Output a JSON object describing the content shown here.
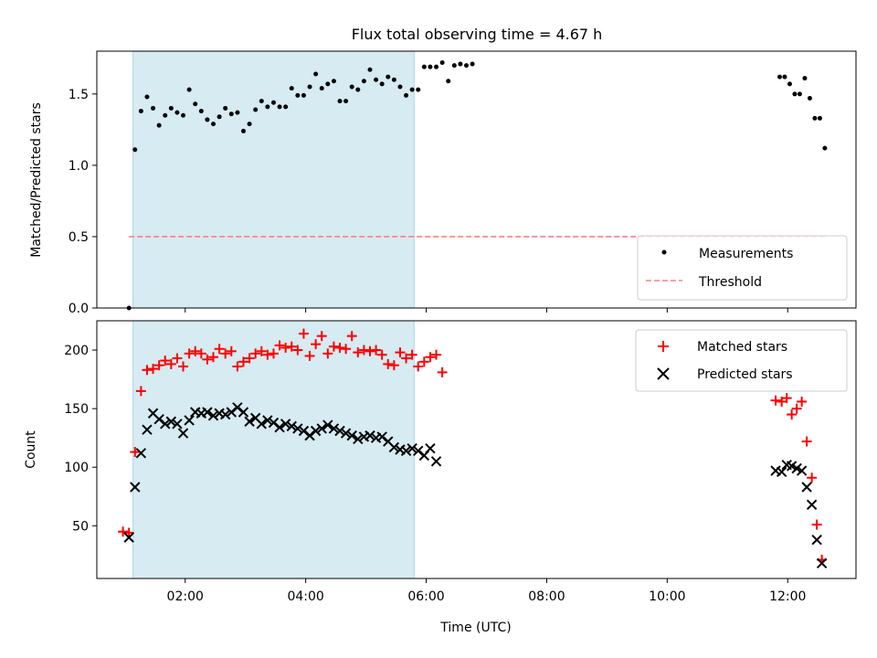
{
  "figure": {
    "title": "Flux total observing time = 4.67 h"
  },
  "chart_data": [
    {
      "type": "scatter",
      "id": "top",
      "ylabel": "Matched/Predicted stars",
      "xlabel": "",
      "xlim": [
        "00:32",
        "13:08"
      ],
      "ylim": [
        0,
        1.8
      ],
      "yticks": [
        0.0,
        0.5,
        1.0,
        1.5
      ],
      "ytick_labels": [
        "0.0",
        "0.5",
        "1.0",
        "1.5"
      ],
      "xticks": [
        "02:00",
        "04:00",
        "06:00",
        "08:00",
        "10:00",
        "12:00"
      ],
      "x_tick_labels_shown": false,
      "shaded_interval": {
        "start": "01:08",
        "end": "05:48",
        "color": "#add8e6"
      },
      "legend": {
        "position": "lower right",
        "entries": [
          "Measurements",
          "Threshold"
        ]
      },
      "series": [
        {
          "name": "Measurements",
          "marker": "dot",
          "color": "#000000",
          "points": [
            [
              "01:04",
              0.0
            ],
            [
              "01:10",
              1.11
            ],
            [
              "01:16",
              1.38
            ],
            [
              "01:22",
              1.48
            ],
            [
              "01:28",
              1.4
            ],
            [
              "01:34",
              1.28
            ],
            [
              "01:40",
              1.35
            ],
            [
              "01:46",
              1.4
            ],
            [
              "01:52",
              1.37
            ],
            [
              "01:58",
              1.35
            ],
            [
              "02:04",
              1.53
            ],
            [
              "02:10",
              1.43
            ],
            [
              "02:16",
              1.38
            ],
            [
              "02:22",
              1.32
            ],
            [
              "02:28",
              1.29
            ],
            [
              "02:34",
              1.34
            ],
            [
              "02:40",
              1.4
            ],
            [
              "02:46",
              1.36
            ],
            [
              "02:52",
              1.37
            ],
            [
              "02:58",
              1.24
            ],
            [
              "03:04",
              1.29
            ],
            [
              "03:10",
              1.39
            ],
            [
              "03:16",
              1.45
            ],
            [
              "03:22",
              1.41
            ],
            [
              "03:28",
              1.44
            ],
            [
              "03:34",
              1.41
            ],
            [
              "03:40",
              1.41
            ],
            [
              "03:46",
              1.54
            ],
            [
              "03:52",
              1.49
            ],
            [
              "03:58",
              1.49
            ],
            [
              "04:04",
              1.55
            ],
            [
              "04:10",
              1.64
            ],
            [
              "04:16",
              1.54
            ],
            [
              "04:22",
              1.57
            ],
            [
              "04:28",
              1.59
            ],
            [
              "04:34",
              1.45
            ],
            [
              "04:40",
              1.45
            ],
            [
              "04:46",
              1.55
            ],
            [
              "04:52",
              1.53
            ],
            [
              "04:58",
              1.59
            ],
            [
              "05:04",
              1.67
            ],
            [
              "05:10",
              1.6
            ],
            [
              "05:16",
              1.57
            ],
            [
              "05:22",
              1.62
            ],
            [
              "05:28",
              1.6
            ],
            [
              "05:34",
              1.55
            ],
            [
              "05:40",
              1.49
            ],
            [
              "05:46",
              1.53
            ],
            [
              "05:52",
              1.53
            ],
            [
              "05:58",
              1.69
            ],
            [
              "06:04",
              1.69
            ],
            [
              "06:10",
              1.69
            ],
            [
              "06:16",
              1.72
            ],
            [
              "06:22",
              1.59
            ],
            [
              "06:28",
              1.7
            ],
            [
              "06:34",
              1.71
            ],
            [
              "06:40",
              1.7
            ],
            [
              "06:46",
              1.71
            ],
            [
              "11:52",
              1.62
            ],
            [
              "11:57",
              1.62
            ],
            [
              "12:02",
              1.57
            ],
            [
              "12:07",
              1.5
            ],
            [
              "12:12",
              1.5
            ],
            [
              "12:17",
              1.61
            ],
            [
              "12:22",
              1.47
            ],
            [
              "12:27",
              1.33
            ],
            [
              "12:32",
              1.33
            ],
            [
              "12:37",
              1.12
            ]
          ]
        },
        {
          "name": "Threshold",
          "style": "dashed",
          "color": "#ff7f7f",
          "line": [
            [
              "01:04",
              0.5
            ],
            [
              "12:37",
              0.5
            ]
          ]
        }
      ]
    },
    {
      "type": "scatter",
      "id": "bottom",
      "ylabel": "Count",
      "xlabel": "Time (UTC)",
      "xlim": [
        "00:32",
        "13:08"
      ],
      "ylim": [
        5,
        225
      ],
      "yticks": [
        50,
        100,
        150,
        200
      ],
      "ytick_labels": [
        "50",
        "100",
        "150",
        "200"
      ],
      "xticks": [
        "02:00",
        "04:00",
        "06:00",
        "08:00",
        "10:00",
        "12:00"
      ],
      "x_tick_labels_shown": true,
      "shaded_interval": {
        "start": "01:08",
        "end": "05:48",
        "color": "#add8e6"
      },
      "legend": {
        "position": "upper right",
        "entries": [
          "Matched stars",
          "Predicted stars"
        ]
      },
      "series": [
        {
          "name": "Matched stars",
          "marker": "plus",
          "color": "#ff0000",
          "points": [
            [
              "00:58",
              45
            ],
            [
              "01:04",
              44
            ],
            [
              "01:10",
              113
            ],
            [
              "01:16",
              165
            ],
            [
              "01:22",
              183
            ],
            [
              "01:28",
              184
            ],
            [
              "01:34",
              187
            ],
            [
              "01:40",
              191
            ],
            [
              "01:46",
              188
            ],
            [
              "01:52",
              193
            ],
            [
              "01:58",
              186
            ],
            [
              "02:04",
              197
            ],
            [
              "02:10",
              199
            ],
            [
              "02:16",
              197
            ],
            [
              "02:22",
              192
            ],
            [
              "02:28",
              194
            ],
            [
              "02:34",
              201
            ],
            [
              "02:40",
              197
            ],
            [
              "02:46",
              199
            ],
            [
              "02:52",
              186
            ],
            [
              "02:58",
              190
            ],
            [
              "03:04",
              193
            ],
            [
              "03:10",
              197
            ],
            [
              "03:16",
              199
            ],
            [
              "03:22",
              196
            ],
            [
              "03:28",
              197
            ],
            [
              "03:34",
              204
            ],
            [
              "03:40",
              202
            ],
            [
              "03:46",
              203
            ],
            [
              "03:52",
              200
            ],
            [
              "03:58",
              214
            ],
            [
              "04:04",
              195
            ],
            [
              "04:10",
              205
            ],
            [
              "04:16",
              212
            ],
            [
              "04:22",
              197
            ],
            [
              "04:28",
              203
            ],
            [
              "04:34",
              202
            ],
            [
              "04:40",
              201
            ],
            [
              "04:46",
              212
            ],
            [
              "04:52",
              198
            ],
            [
              "04:58",
              200
            ],
            [
              "05:04",
              199
            ],
            [
              "05:10",
              200
            ],
            [
              "05:16",
              196
            ],
            [
              "05:22",
              188
            ],
            [
              "05:28",
              187
            ],
            [
              "05:34",
              198
            ],
            [
              "05:40",
              193
            ],
            [
              "05:46",
              196
            ],
            [
              "05:52",
              186
            ],
            [
              "05:58",
              190
            ],
            [
              "06:04",
              194
            ],
            [
              "06:10",
              196
            ],
            [
              "06:16",
              181
            ],
            [
              "11:48",
              157
            ],
            [
              "11:54",
              156
            ],
            [
              "11:59",
              159
            ],
            [
              "12:04",
              145
            ],
            [
              "12:09",
              150
            ],
            [
              "12:14",
              156
            ],
            [
              "12:19",
              122
            ],
            [
              "12:24",
              91
            ],
            [
              "12:29",
              51
            ],
            [
              "12:34",
              21
            ]
          ]
        },
        {
          "name": "Predicted stars",
          "marker": "x",
          "color": "#000000",
          "points": [
            [
              "01:04",
              40
            ],
            [
              "01:10",
              83
            ],
            [
              "01:16",
              112
            ],
            [
              "01:22",
              132
            ],
            [
              "01:28",
              146
            ],
            [
              "01:34",
              141
            ],
            [
              "01:40",
              137
            ],
            [
              "01:46",
              139
            ],
            [
              "01:52",
              137
            ],
            [
              "01:58",
              129
            ],
            [
              "02:04",
              140
            ],
            [
              "02:10",
              147
            ],
            [
              "02:16",
              146
            ],
            [
              "02:22",
              147
            ],
            [
              "02:28",
              144
            ],
            [
              "02:34",
              146
            ],
            [
              "02:40",
              145
            ],
            [
              "02:46",
              147
            ],
            [
              "02:52",
              151
            ],
            [
              "02:58",
              147
            ],
            [
              "03:04",
              139
            ],
            [
              "03:10",
              142
            ],
            [
              "03:16",
              137
            ],
            [
              "03:22",
              140
            ],
            [
              "03:28",
              138
            ],
            [
              "03:34",
              134
            ],
            [
              "03:40",
              137
            ],
            [
              "03:46",
              135
            ],
            [
              "03:52",
              133
            ],
            [
              "03:58",
              131
            ],
            [
              "04:04",
              127
            ],
            [
              "04:10",
              131
            ],
            [
              "04:16",
              133
            ],
            [
              "04:22",
              136
            ],
            [
              "04:28",
              133
            ],
            [
              "04:34",
              131
            ],
            [
              "04:40",
              129
            ],
            [
              "04:46",
              127
            ],
            [
              "04:52",
              124
            ],
            [
              "04:58",
              126
            ],
            [
              "05:04",
              127
            ],
            [
              "05:10",
              125
            ],
            [
              "05:16",
              126
            ],
            [
              "05:22",
              122
            ],
            [
              "05:28",
              117
            ],
            [
              "05:34",
              115
            ],
            [
              "05:40",
              114
            ],
            [
              "05:46",
              116
            ],
            [
              "05:52",
              114
            ],
            [
              "05:58",
              110
            ],
            [
              "06:04",
              116
            ],
            [
              "06:10",
              105
            ],
            [
              "11:48",
              97
            ],
            [
              "11:54",
              96
            ],
            [
              "11:59",
              102
            ],
            [
              "12:04",
              101
            ],
            [
              "12:09",
              99
            ],
            [
              "12:14",
              97
            ],
            [
              "12:19",
              83
            ],
            [
              "12:24",
              68
            ],
            [
              "12:29",
              38
            ],
            [
              "12:34",
              18
            ]
          ]
        }
      ]
    }
  ]
}
